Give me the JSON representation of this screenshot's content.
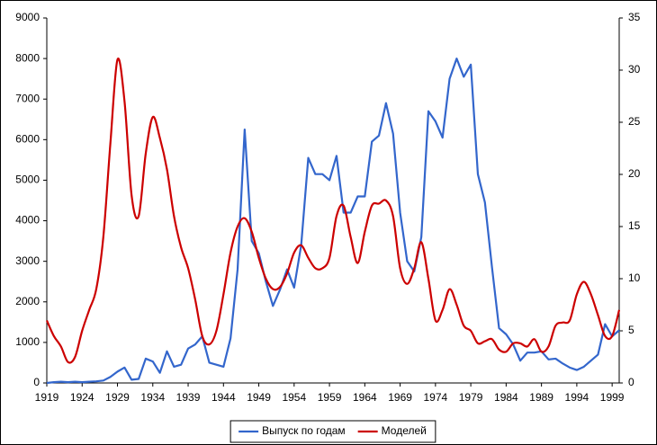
{
  "chart_data": {
    "type": "line",
    "x": [
      1919,
      1920,
      1921,
      1922,
      1923,
      1924,
      1925,
      1926,
      1927,
      1928,
      1929,
      1930,
      1931,
      1932,
      1933,
      1934,
      1935,
      1936,
      1937,
      1938,
      1939,
      1940,
      1941,
      1942,
      1943,
      1944,
      1945,
      1946,
      1947,
      1948,
      1949,
      1950,
      1951,
      1952,
      1953,
      1954,
      1955,
      1956,
      1957,
      1958,
      1959,
      1960,
      1961,
      1962,
      1963,
      1964,
      1965,
      1966,
      1967,
      1968,
      1969,
      1970,
      1971,
      1972,
      1973,
      1974,
      1975,
      1976,
      1977,
      1978,
      1979,
      1980,
      1981,
      1982,
      1983,
      1984,
      1985,
      1986,
      1987,
      1988,
      1989,
      1990,
      1991,
      1992,
      1993,
      1994,
      1995,
      1996,
      1997,
      1998,
      1999,
      2000
    ],
    "series": [
      {
        "name": "Выпуск по годам",
        "color": "#3366cc",
        "axis": "y",
        "smooth": false,
        "values": [
          0,
          20,
          30,
          20,
          30,
          20,
          30,
          40,
          60,
          150,
          280,
          380,
          80,
          100,
          600,
          530,
          250,
          780,
          400,
          450,
          850,
          950,
          1150,
          500,
          450,
          400,
          1100,
          2800,
          6250,
          3500,
          3200,
          2500,
          1900,
          2300,
          2800,
          2350,
          3400,
          5550,
          5150,
          5150,
          5000,
          5600,
          4200,
          4200,
          4600,
          4600,
          5950,
          6100,
          6900,
          6150,
          4200,
          3000,
          2750,
          3600,
          6700,
          6450,
          6050,
          7500,
          8000,
          7550,
          7850,
          5150,
          4450,
          2850,
          1350,
          1200,
          950,
          550,
          750,
          750,
          780,
          580,
          600,
          480,
          380,
          320,
          400,
          550,
          700,
          1450,
          1150,
          1300
        ]
      },
      {
        "name": "Моделей",
        "color": "#cc0000",
        "axis": "y2",
        "smooth": true,
        "values": [
          6,
          4.5,
          3.5,
          2,
          2.5,
          5,
          7,
          9,
          14,
          23,
          31,
          27,
          18,
          16,
          22,
          25.5,
          23.5,
          20.5,
          16,
          13,
          11,
          8,
          4.5,
          3.7,
          5,
          8.5,
          12.5,
          15,
          15.8,
          14.5,
          12,
          10,
          9,
          9.2,
          10.5,
          12.5,
          13.2,
          12,
          11,
          11,
          12,
          16,
          17,
          14,
          11.5,
          14.5,
          17,
          17.2,
          17.5,
          16,
          11,
          9.5,
          11,
          13.5,
          10,
          6,
          7,
          9,
          7.5,
          5.5,
          5,
          3.8,
          4,
          4.2,
          3.2,
          3,
          3.8,
          3.8,
          3.5,
          4.2,
          3,
          3.5,
          5.5,
          5.8,
          6,
          8.5,
          9.7,
          8.5,
          6.5,
          4.5,
          4.5,
          7
        ]
      }
    ],
    "xlim": [
      1919,
      2000
    ],
    "xticks": [
      1919,
      1924,
      1929,
      1934,
      1939,
      1944,
      1949,
      1954,
      1959,
      1964,
      1969,
      1974,
      1979,
      1984,
      1989,
      1994,
      1999
    ],
    "ylim": [
      0,
      9000
    ],
    "yticks": [
      0,
      1000,
      2000,
      3000,
      4000,
      5000,
      6000,
      7000,
      8000,
      9000
    ],
    "y2lim": [
      0,
      35
    ],
    "y2ticks": [
      0,
      5,
      10,
      15,
      20,
      25,
      30,
      35
    ],
    "legend": "bottom"
  }
}
